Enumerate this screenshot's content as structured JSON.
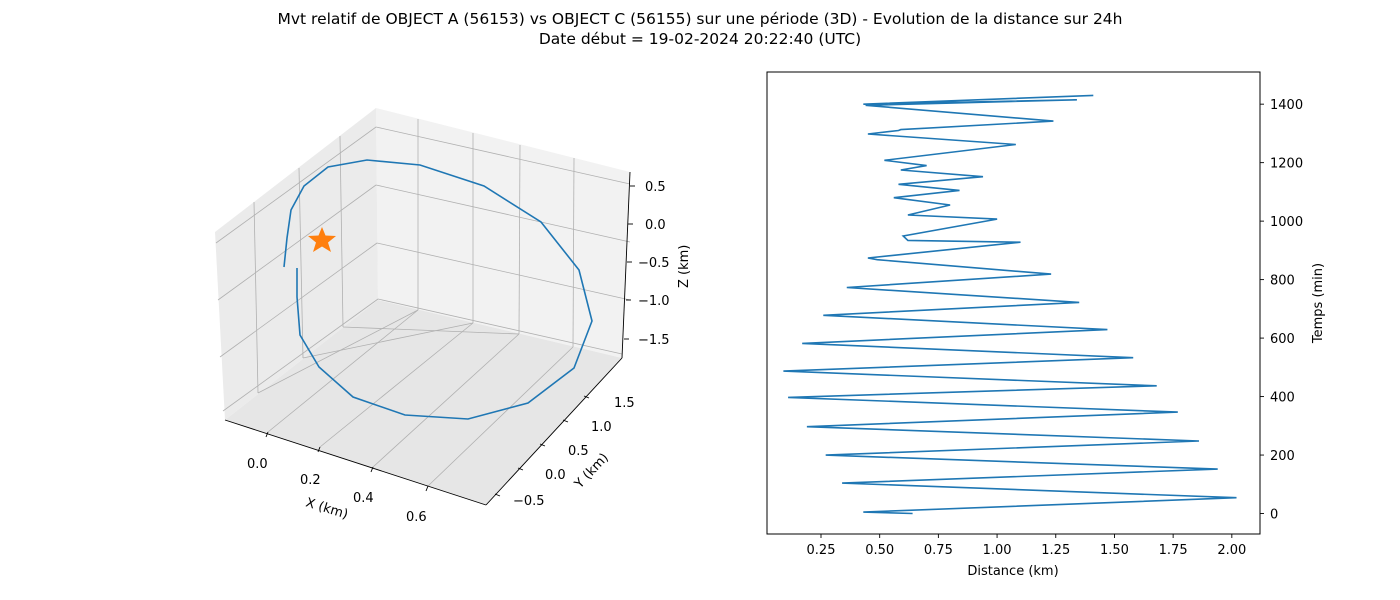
{
  "figure": {
    "title_line1": "Mvt relatif de OBJECT A (56153) vs OBJECT C (56155) sur une période (3D) - Evolution de la distance sur 24h",
    "title_line2": "Date début = 19-02-2024 20:22:40 (UTC)"
  },
  "colors": {
    "line": "#1f77b4",
    "star": "#ff7f0e",
    "grid": "#b0b0b0",
    "pane": "#f2f2f2"
  },
  "chart_data": [
    {
      "type": "line3d",
      "xlabel": "X (km)",
      "ylabel": "Y (km)",
      "zlabel": "Z (km)",
      "x_ticks": [
        "0.0",
        "0.2",
        "0.4",
        "0.6"
      ],
      "y_ticks": [
        "−0.5",
        "0.0",
        "0.5",
        "1.0",
        "1.5"
      ],
      "z_ticks": [
        "0.5",
        "0.0",
        "−0.5",
        "−1.0",
        "−1.5"
      ],
      "grid": true,
      "series": [
        {
          "marker": "star",
          "points": [
            [
              0.02,
              -0.45,
              -0.1
            ]
          ]
        }
      ]
    },
    {
      "type": "line",
      "xlabel": "Distance (km)",
      "ylabel": "Temps (min)",
      "xlim": [
        0.02,
        2.12
      ],
      "ylim": [
        -70,
        1510
      ],
      "x_ticks": [
        0.25,
        0.5,
        0.75,
        1.0,
        1.25,
        1.5,
        1.75,
        2.0
      ],
      "x_tick_labels": [
        "0.25",
        "0.50",
        "0.75",
        "1.00",
        "1.25",
        "1.50",
        "1.75",
        "2.00"
      ],
      "y_ticks": [
        0,
        200,
        400,
        600,
        800,
        1000,
        1200,
        1400
      ],
      "y_tick_labels": [
        "0",
        "200",
        "400",
        "600",
        "800",
        "1000",
        "1200",
        "1400"
      ],
      "grid": false,
      "series": [
        {
          "x": [
            0.64,
            0.43,
            2.02,
            0.34,
            1.94,
            0.27,
            1.86,
            0.19,
            1.77,
            0.11,
            1.68,
            0.09,
            1.58,
            0.17,
            1.47,
            0.26,
            1.35,
            0.36,
            1.23,
            0.49,
            0.45,
            0.56,
            1.1,
            0.62,
            0.6,
            1.0,
            0.62,
            0.8,
            0.56,
            0.84,
            0.58,
            0.94,
            0.59,
            0.7,
            0.52,
            1.08,
            0.45,
            0.58,
            0.59,
            1.24,
            0.44,
            1.34,
            0.43,
            1.41
          ],
          "y": [
            0,
            5,
            54,
            104,
            152,
            200,
            248,
            297,
            347,
            397,
            437,
            487,
            533,
            582,
            629,
            678,
            722,
            773,
            819,
            868,
            874,
            883,
            928,
            934,
            949,
            1007,
            1021,
            1055,
            1080,
            1105,
            1126,
            1152,
            1175,
            1190,
            1208,
            1262,
            1298,
            1310,
            1313,
            1342,
            1396,
            1415,
            1400,
            1430
          ]
        }
      ]
    }
  ]
}
